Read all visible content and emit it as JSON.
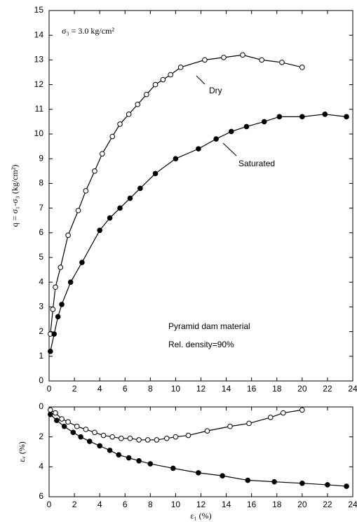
{
  "chart_data": [
    {
      "type": "line",
      "ylabel": "q = σ₁-σ₃ (kg/cm²)",
      "annotations": [
        "σ₃ = 3.0 kg/cm²",
        "Pyramid dam material",
        "Rel. density=90%"
      ],
      "xlim": [
        0,
        24
      ],
      "xticks": [
        0,
        2,
        4,
        6,
        8,
        10,
        12,
        14,
        16,
        18,
        20,
        22,
        24
      ],
      "ylim": [
        0,
        15
      ],
      "yticks": [
        0,
        1,
        2,
        3,
        4,
        5,
        6,
        7,
        8,
        9,
        10,
        11,
        12,
        13,
        14,
        15
      ],
      "series": [
        {
          "name": "Dry",
          "color": "#000000",
          "marker_fill": "#ffffff",
          "x": [
            0.1,
            0.3,
            0.5,
            0.9,
            1.5,
            2.3,
            2.9,
            3.6,
            4.2,
            5.0,
            5.6,
            6.3,
            7.0,
            7.7,
            8.4,
            9.0,
            9.6,
            10.4,
            12.3,
            13.8,
            15.3,
            16.8,
            18.4,
            20.0
          ],
          "values": [
            1.9,
            2.9,
            3.8,
            4.6,
            5.9,
            6.9,
            7.7,
            8.5,
            9.2,
            9.9,
            10.4,
            10.8,
            11.2,
            11.6,
            12.0,
            12.2,
            12.4,
            12.7,
            13.0,
            13.1,
            13.2,
            13.0,
            12.9,
            12.7
          ]
        },
        {
          "name": "Saturated",
          "color": "#000000",
          "marker_fill": "#000000",
          "x": [
            0.1,
            0.4,
            0.7,
            1.0,
            1.7,
            2.6,
            4.0,
            4.8,
            5.6,
            6.4,
            7.2,
            8.4,
            10.0,
            11.8,
            13.2,
            14.4,
            15.6,
            17.0,
            18.2,
            20.0,
            21.8,
            23.5
          ],
          "values": [
            1.2,
            1.9,
            2.6,
            3.1,
            4.0,
            4.8,
            6.1,
            6.6,
            7.0,
            7.4,
            7.8,
            8.4,
            9.0,
            9.4,
            9.8,
            10.1,
            10.3,
            10.5,
            10.7,
            10.7,
            10.8,
            10.7
          ]
        }
      ]
    },
    {
      "type": "line",
      "xlabel": "ε₁ (%)",
      "ylabel": "εᵥ (%)",
      "xlim": [
        0,
        24
      ],
      "xticks": [
        0,
        2,
        4,
        6,
        8,
        10,
        12,
        14,
        16,
        18,
        20,
        22,
        24
      ],
      "ylim": [
        6,
        0
      ],
      "yticks": [
        0,
        2,
        4,
        6
      ],
      "series": [
        {
          "color": "#000000",
          "marker_fill": "#ffffff",
          "x": [
            0.1,
            0.5,
            1.0,
            1.5,
            2.2,
            2.9,
            3.6,
            4.3,
            5.0,
            5.7,
            6.4,
            7.1,
            7.8,
            8.5,
            9.3,
            10.0,
            11.0,
            12.5,
            14.3,
            15.8,
            17.5,
            18.5,
            20.0
          ],
          "values": [
            0.2,
            0.4,
            0.8,
            1.0,
            1.3,
            1.5,
            1.7,
            1.9,
            2.0,
            2.1,
            2.1,
            2.2,
            2.2,
            2.2,
            2.1,
            2.0,
            1.9,
            1.6,
            1.3,
            1.1,
            0.7,
            0.4,
            0.2
          ]
        },
        {
          "color": "#000000",
          "marker_fill": "#000000",
          "x": [
            0.1,
            0.6,
            1.2,
            1.9,
            2.5,
            3.2,
            4.0,
            4.8,
            5.5,
            6.3,
            7.1,
            8.0,
            9.8,
            11.8,
            13.7,
            15.7,
            17.8,
            20.0,
            22.0,
            23.5
          ],
          "values": [
            0.5,
            0.9,
            1.3,
            1.7,
            2.0,
            2.3,
            2.6,
            2.9,
            3.2,
            3.4,
            3.6,
            3.8,
            4.1,
            4.4,
            4.6,
            4.9,
            5.0,
            5.1,
            5.2,
            5.3
          ]
        }
      ]
    }
  ]
}
